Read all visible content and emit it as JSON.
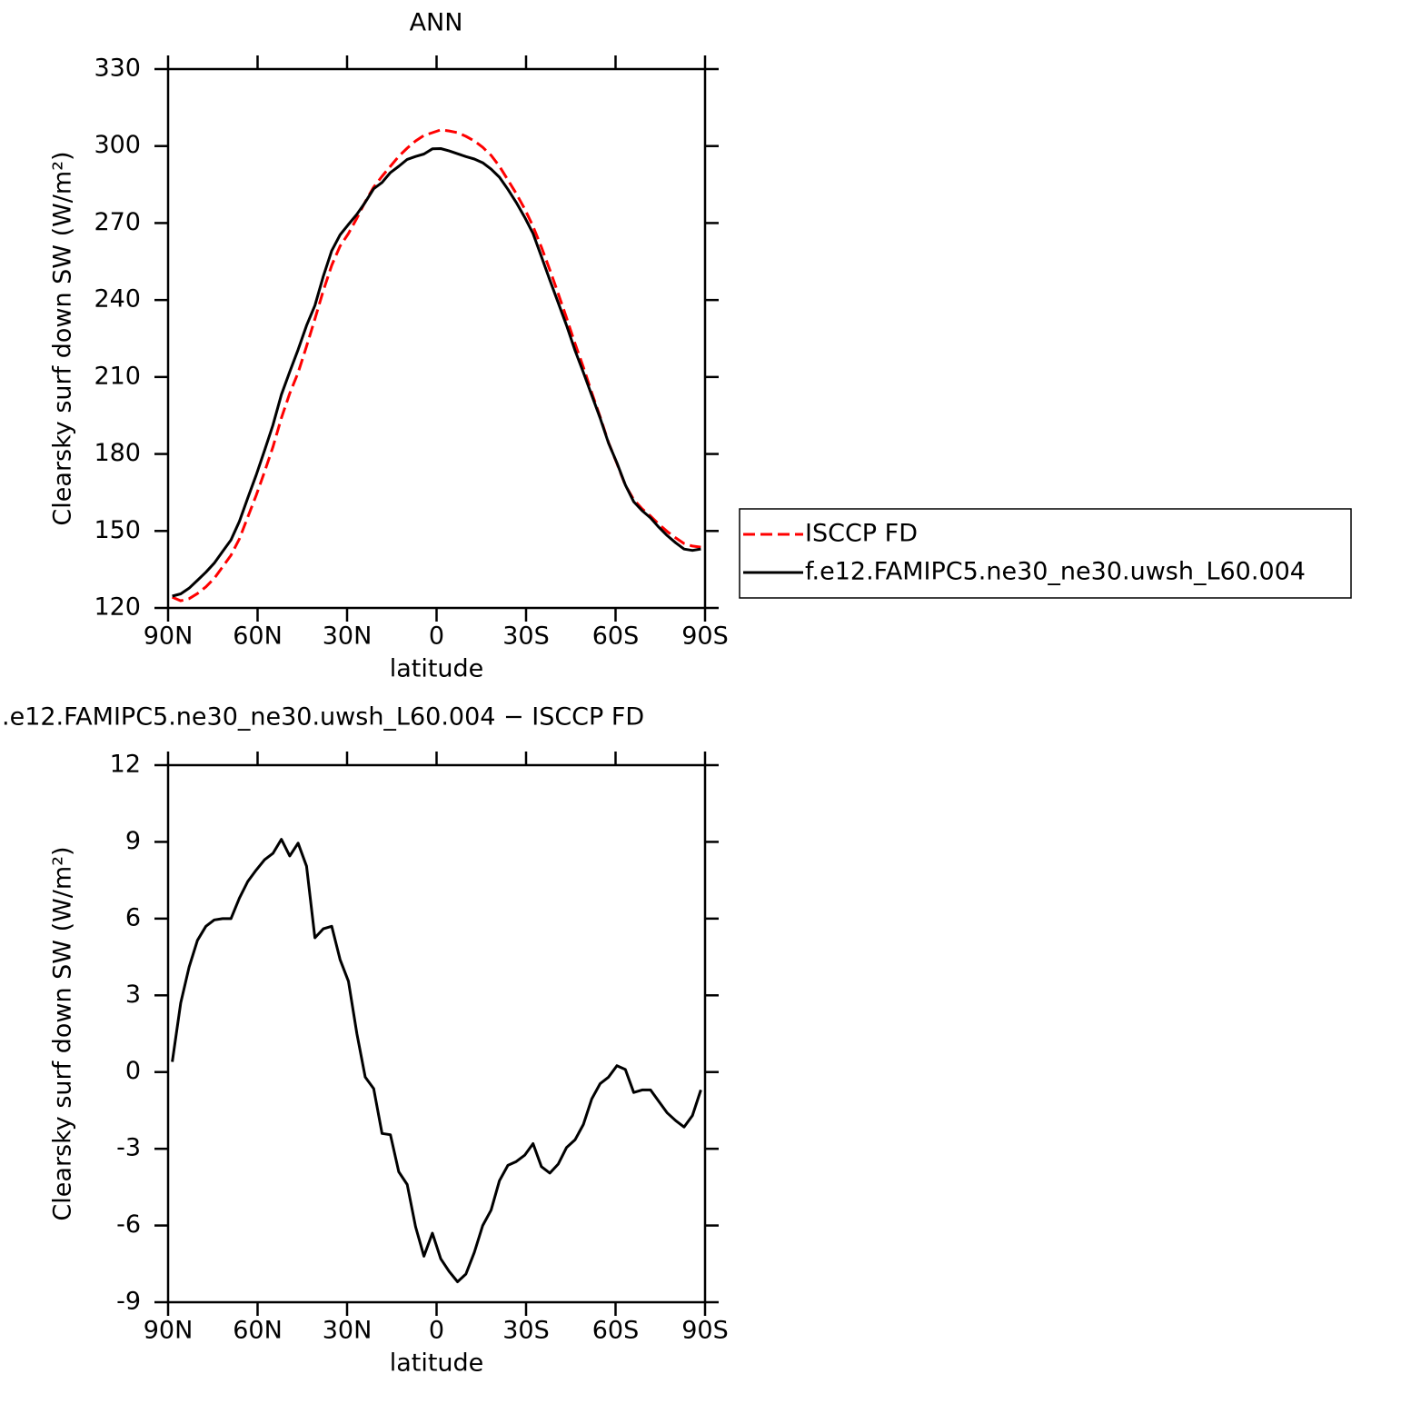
{
  "chart_data": [
    {
      "type": "line",
      "title": "ANN",
      "xlabel": "latitude",
      "ylabel": "Clearsky surf down SW (W/m²)",
      "x": [
        88.59,
        85.78,
        82.97,
        80.16,
        77.34,
        74.53,
        71.72,
        68.91,
        66.09,
        63.28,
        60.47,
        57.66,
        54.84,
        52.03,
        49.22,
        46.41,
        43.59,
        40.78,
        37.97,
        35.16,
        32.34,
        29.53,
        26.72,
        23.91,
        21.09,
        18.28,
        15.47,
        12.66,
        9.84,
        7.03,
        4.22,
        1.41,
        -1.41,
        -4.22,
        -7.03,
        -9.84,
        -12.66,
        -15.47,
        -18.28,
        -21.09,
        -23.91,
        -26.72,
        -29.53,
        -32.34,
        -35.16,
        -37.97,
        -40.78,
        -43.59,
        -46.41,
        -49.22,
        -52.03,
        -54.84,
        -57.66,
        -60.47,
        -63.28,
        -66.09,
        -68.91,
        -71.72,
        -74.53,
        -77.34,
        -80.16,
        -82.97,
        -85.78,
        -88.59
      ],
      "xlim": [
        90,
        -90
      ],
      "xticks": [
        {
          "value": 90,
          "label": "90N"
        },
        {
          "value": 60,
          "label": "60N"
        },
        {
          "value": 30,
          "label": "30N"
        },
        0,
        {
          "value": -30,
          "label": "30S"
        },
        {
          "value": -60,
          "label": "60S"
        },
        {
          "value": -90,
          "label": "90S"
        }
      ],
      "ylim": [
        120,
        330
      ],
      "yticks": [
        120,
        150,
        180,
        210,
        240,
        270,
        300,
        330
      ],
      "legend": "outside-right",
      "series": [
        {
          "name": "ISCCP FD",
          "color": "#ff0000",
          "line_style": "dashed",
          "values": [
            124.2,
            122.8,
            123.6,
            125.6,
            128.2,
            131.5,
            136.0,
            140.5,
            146.9,
            155.4,
            163.9,
            173.1,
            182.7,
            194.0,
            203.6,
            211.7,
            222.0,
            232.6,
            243.6,
            253.5,
            261.0,
            265.9,
            271.9,
            278.3,
            284.0,
            288.2,
            292.1,
            296.0,
            299.2,
            302.0,
            304.1,
            305.2,
            306.3,
            305.9,
            305.2,
            303.8,
            302.0,
            299.5,
            296.4,
            292.1,
            286.8,
            281.5,
            275.5,
            268.7,
            260.6,
            251.7,
            242.5,
            233.0,
            223.0,
            213.8,
            203.9,
            194.4,
            184.4,
            176.3,
            167.8,
            162.2,
            158.6,
            155.8,
            152.6,
            149.8,
            147.3,
            145.1,
            144.1,
            143.7
          ]
        },
        {
          "name": "f.e12.FAMIPC5.ne30_ne30.uwsh_L60.004",
          "color": "#000000",
          "line_style": "solid",
          "values": [
            124.6,
            125.5,
            127.7,
            130.75,
            133.9,
            137.45,
            142.0,
            146.5,
            153.7,
            162.85,
            171.8,
            181.4,
            191.25,
            203.1,
            212.05,
            220.65,
            230.05,
            237.85,
            249.2,
            259.2,
            265.4,
            269.45,
            273.4,
            278.1,
            283.35,
            285.8,
            289.65,
            292.1,
            294.8,
            295.95,
            296.9,
            298.9,
            299.0,
            298.1,
            297.0,
            295.9,
            294.95,
            293.5,
            291.0,
            287.85,
            283.15,
            278.0,
            272.25,
            265.9,
            256.9,
            247.75,
            238.9,
            230.05,
            220.35,
            211.75,
            202.85,
            193.95,
            184.2,
            176.55,
            167.9,
            161.4,
            157.9,
            155.1,
            151.45,
            148.2,
            145.4,
            142.95,
            142.4,
            143.0
          ]
        }
      ]
    },
    {
      "type": "line",
      "title": ".e12.FAMIPC5.ne30_ne30.uwsh_L60.004 − ISCCP FD",
      "xlabel": "latitude",
      "ylabel": "Clearsky surf down SW (W/m²)",
      "x": [
        88.59,
        85.78,
        82.97,
        80.16,
        77.34,
        74.53,
        71.72,
        68.91,
        66.09,
        63.28,
        60.47,
        57.66,
        54.84,
        52.03,
        49.22,
        46.41,
        43.59,
        40.78,
        37.97,
        35.16,
        32.34,
        29.53,
        26.72,
        23.91,
        21.09,
        18.28,
        15.47,
        12.66,
        9.84,
        7.03,
        4.22,
        1.41,
        -1.41,
        -4.22,
        -7.03,
        -9.84,
        -12.66,
        -15.47,
        -18.28,
        -21.09,
        -23.91,
        -26.72,
        -29.53,
        -32.34,
        -35.16,
        -37.97,
        -40.78,
        -43.59,
        -46.41,
        -49.22,
        -52.03,
        -54.84,
        -57.66,
        -60.47,
        -63.28,
        -66.09,
        -68.91,
        -71.72,
        -74.53,
        -77.34,
        -80.16,
        -82.97,
        -85.78,
        -88.59
      ],
      "xlim": [
        90,
        -90
      ],
      "xticks": [
        {
          "value": 90,
          "label": "90N"
        },
        {
          "value": 60,
          "label": "60N"
        },
        {
          "value": 30,
          "label": "30N"
        },
        0,
        {
          "value": -30,
          "label": "30S"
        },
        {
          "value": -60,
          "label": "60S"
        },
        {
          "value": -90,
          "label": "90S"
        }
      ],
      "ylim": [
        -9,
        12
      ],
      "yticks": [
        -9,
        -6,
        -3,
        0,
        3,
        6,
        9,
        12
      ],
      "color": "#000000",
      "line_style": "solid",
      "values": [
        0.4,
        2.7,
        4.1,
        5.15,
        5.7,
        5.95,
        6.0,
        6.0,
        6.8,
        7.45,
        7.9,
        8.3,
        8.55,
        9.1,
        8.45,
        8.95,
        8.05,
        5.25,
        5.6,
        5.7,
        4.4,
        3.55,
        1.5,
        -0.2,
        -0.65,
        -2.4,
        -2.45,
        -3.9,
        -4.4,
        -6.05,
        -7.2,
        -6.3,
        -7.3,
        -7.8,
        -8.2,
        -7.9,
        -7.05,
        -6.0,
        -5.4,
        -4.25,
        -3.65,
        -3.5,
        -3.25,
        -2.8,
        -3.7,
        -3.95,
        -3.6,
        -2.95,
        -2.65,
        -2.05,
        -1.05,
        -0.45,
        -0.2,
        0.25,
        0.1,
        -0.8,
        -0.7,
        -0.7,
        -1.15,
        -1.6,
        -1.9,
        -2.15,
        -1.7,
        -0.7
      ]
    }
  ]
}
